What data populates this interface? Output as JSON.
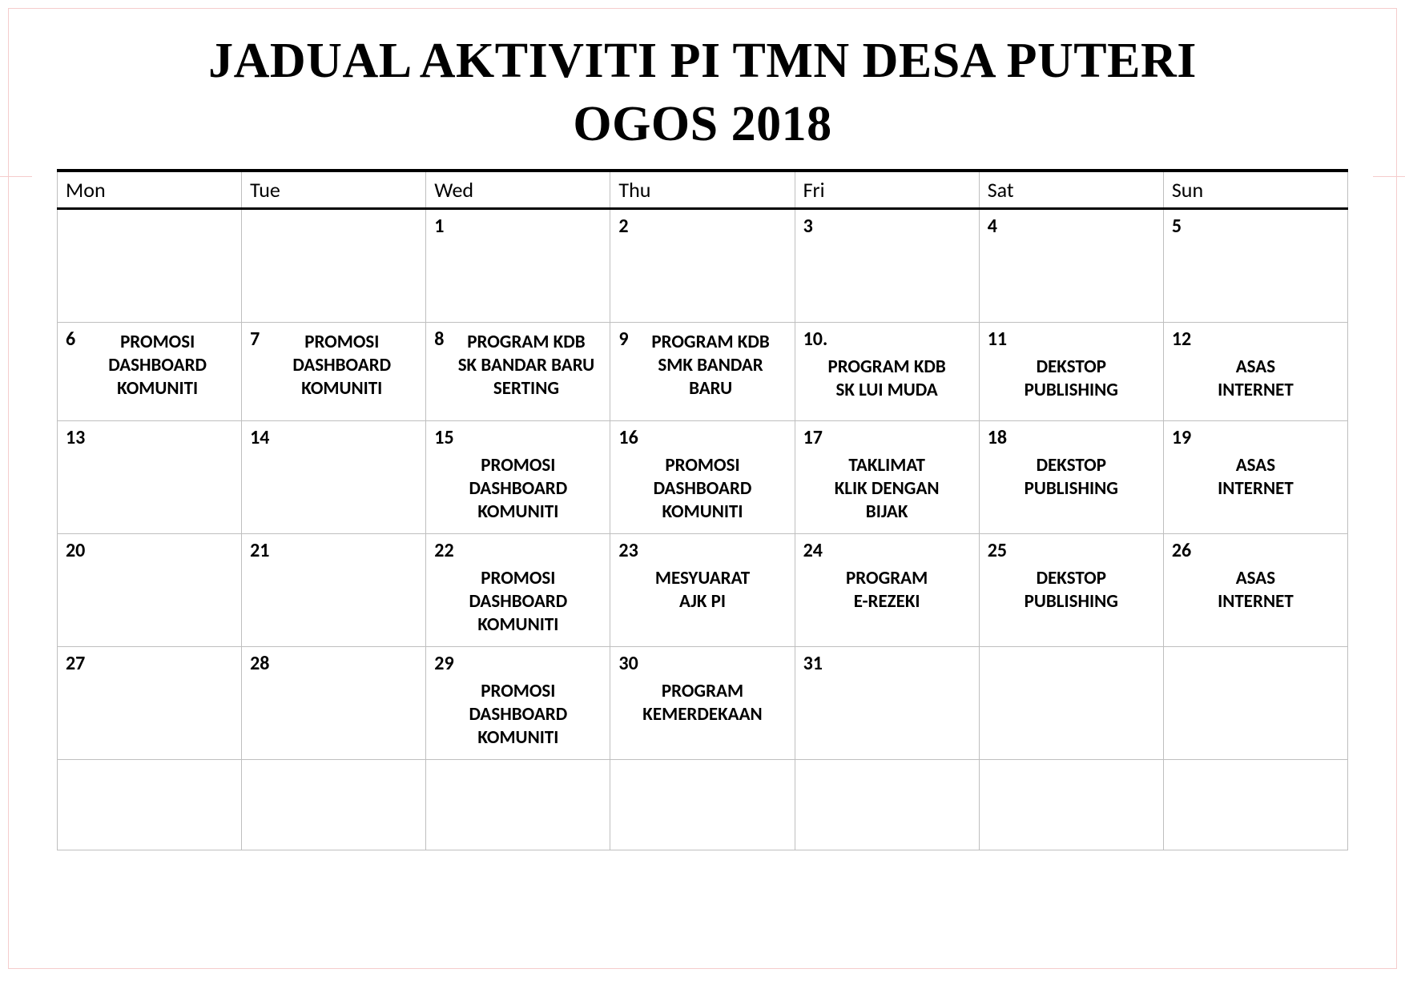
{
  "title_line1": "JADUAL AKTIVITI PI TMN DESA PUTERI",
  "title_line2": "OGOS 2018",
  "colors": {
    "fill": "#00e500",
    "page_border": "#f5cccc",
    "cell_border": "#bfbfbf",
    "header_rule": "#000000",
    "background": "#ffffff",
    "text": "#000000"
  },
  "fonts": {
    "title_family": "Georgia, Times New Roman, serif",
    "title_size_pt": 46,
    "body_family": "Calibri, Arial, sans-serif",
    "header_size_pt": 20,
    "daynum_size_pt": 18,
    "activity_size_pt": 17
  },
  "calendar": {
    "type": "table",
    "columns": [
      "Mon",
      "Tue",
      "Wed",
      "Thu",
      "Fri",
      "Sat",
      "Sun"
    ],
    "rows": [
      [
        {
          "day": "",
          "activity": "",
          "filled": true
        },
        {
          "day": "",
          "activity": "",
          "filled": true
        },
        {
          "day": "1",
          "activity": "",
          "filled": false
        },
        {
          "day": "2",
          "activity": "",
          "filled": false
        },
        {
          "day": "3",
          "activity": "",
          "filled": false
        },
        {
          "day": "4",
          "activity": "",
          "filled": false
        },
        {
          "day": "5",
          "activity": "",
          "filled": false
        }
      ],
      [
        {
          "day": "6",
          "activity": "PROMOSI\nDASHBOARD\nKOMUNITI",
          "filled": false,
          "inline": true
        },
        {
          "day": "7",
          "activity": "PROMOSI\nDASHBOARD\nKOMUNITI",
          "filled": false,
          "inline": true
        },
        {
          "day": "8",
          "activity": "PROGRAM KDB\nSK BANDAR BARU\nSERTING",
          "filled": false,
          "inline": true
        },
        {
          "day": "9",
          "activity": "PROGRAM KDB\nSMK BANDAR\nBARU",
          "filled": false,
          "inline": true
        },
        {
          "day": "10.",
          "activity": "PROGRAM KDB\nSK LUI MUDA",
          "filled": false,
          "inline": false
        },
        {
          "day": "11",
          "activity": "DEKSTOP\nPUBLISHING",
          "filled": false,
          "inline": false
        },
        {
          "day": "12",
          "activity": "ASAS\nINTERNET",
          "filled": false,
          "inline": false
        }
      ],
      [
        {
          "day": "13",
          "activity": "",
          "filled": false
        },
        {
          "day": "14",
          "activity": "",
          "filled": false
        },
        {
          "day": "15",
          "activity": "PROMOSI\nDASHBOARD\nKOMUNITI",
          "filled": false,
          "inline": false
        },
        {
          "day": "16",
          "activity": "PROMOSI\nDASHBOARD\nKOMUNITI",
          "filled": false,
          "inline": false
        },
        {
          "day": "17",
          "activity": "TAKLIMAT\nKLIK DENGAN\nBIJAK",
          "filled": false,
          "inline": false
        },
        {
          "day": "18",
          "activity": "DEKSTOP\nPUBLISHING",
          "filled": false,
          "inline": false
        },
        {
          "day": "19",
          "activity": "ASAS\nINTERNET",
          "filled": false,
          "inline": false
        }
      ],
      [
        {
          "day": "20",
          "activity": "",
          "filled": false
        },
        {
          "day": "21",
          "activity": "",
          "filled": false
        },
        {
          "day": "22",
          "activity": "PROMOSI\nDASHBOARD\nKOMUNITI",
          "filled": false,
          "inline": false
        },
        {
          "day": "23",
          "activity": "MESYUARAT\nAJK PI",
          "filled": false,
          "inline": false
        },
        {
          "day": "24",
          "activity": "PROGRAM\nE-REZEKI",
          "filled": false,
          "inline": false
        },
        {
          "day": "25",
          "activity": "DEKSTOP\nPUBLISHING",
          "filled": false,
          "inline": false
        },
        {
          "day": "26",
          "activity": "ASAS\nINTERNET",
          "filled": false,
          "inline": false
        }
      ],
      [
        {
          "day": "27",
          "activity": "",
          "filled": false
        },
        {
          "day": "28",
          "activity": "",
          "filled": false
        },
        {
          "day": "29",
          "activity": "PROMOSI\nDASHBOARD\nKOMUNITI",
          "filled": false,
          "inline": false
        },
        {
          "day": "30",
          "activity": "PROGRAM\nKEMERDEKAAN",
          "filled": false,
          "inline": false
        },
        {
          "day": "31",
          "activity": "",
          "filled": false
        },
        {
          "day": "",
          "activity": "",
          "filled": true
        },
        {
          "day": "",
          "activity": "",
          "filled": true
        }
      ],
      [
        {
          "day": "",
          "activity": "",
          "filled": true
        },
        {
          "day": "",
          "activity": "",
          "filled": true
        },
        {
          "day": "",
          "activity": "",
          "filled": true
        },
        {
          "day": "",
          "activity": "",
          "filled": true
        },
        {
          "day": "",
          "activity": "",
          "filled": true
        },
        {
          "day": "",
          "activity": "",
          "filled": true
        },
        {
          "day": "",
          "activity": "",
          "filled": true
        }
      ]
    ]
  }
}
